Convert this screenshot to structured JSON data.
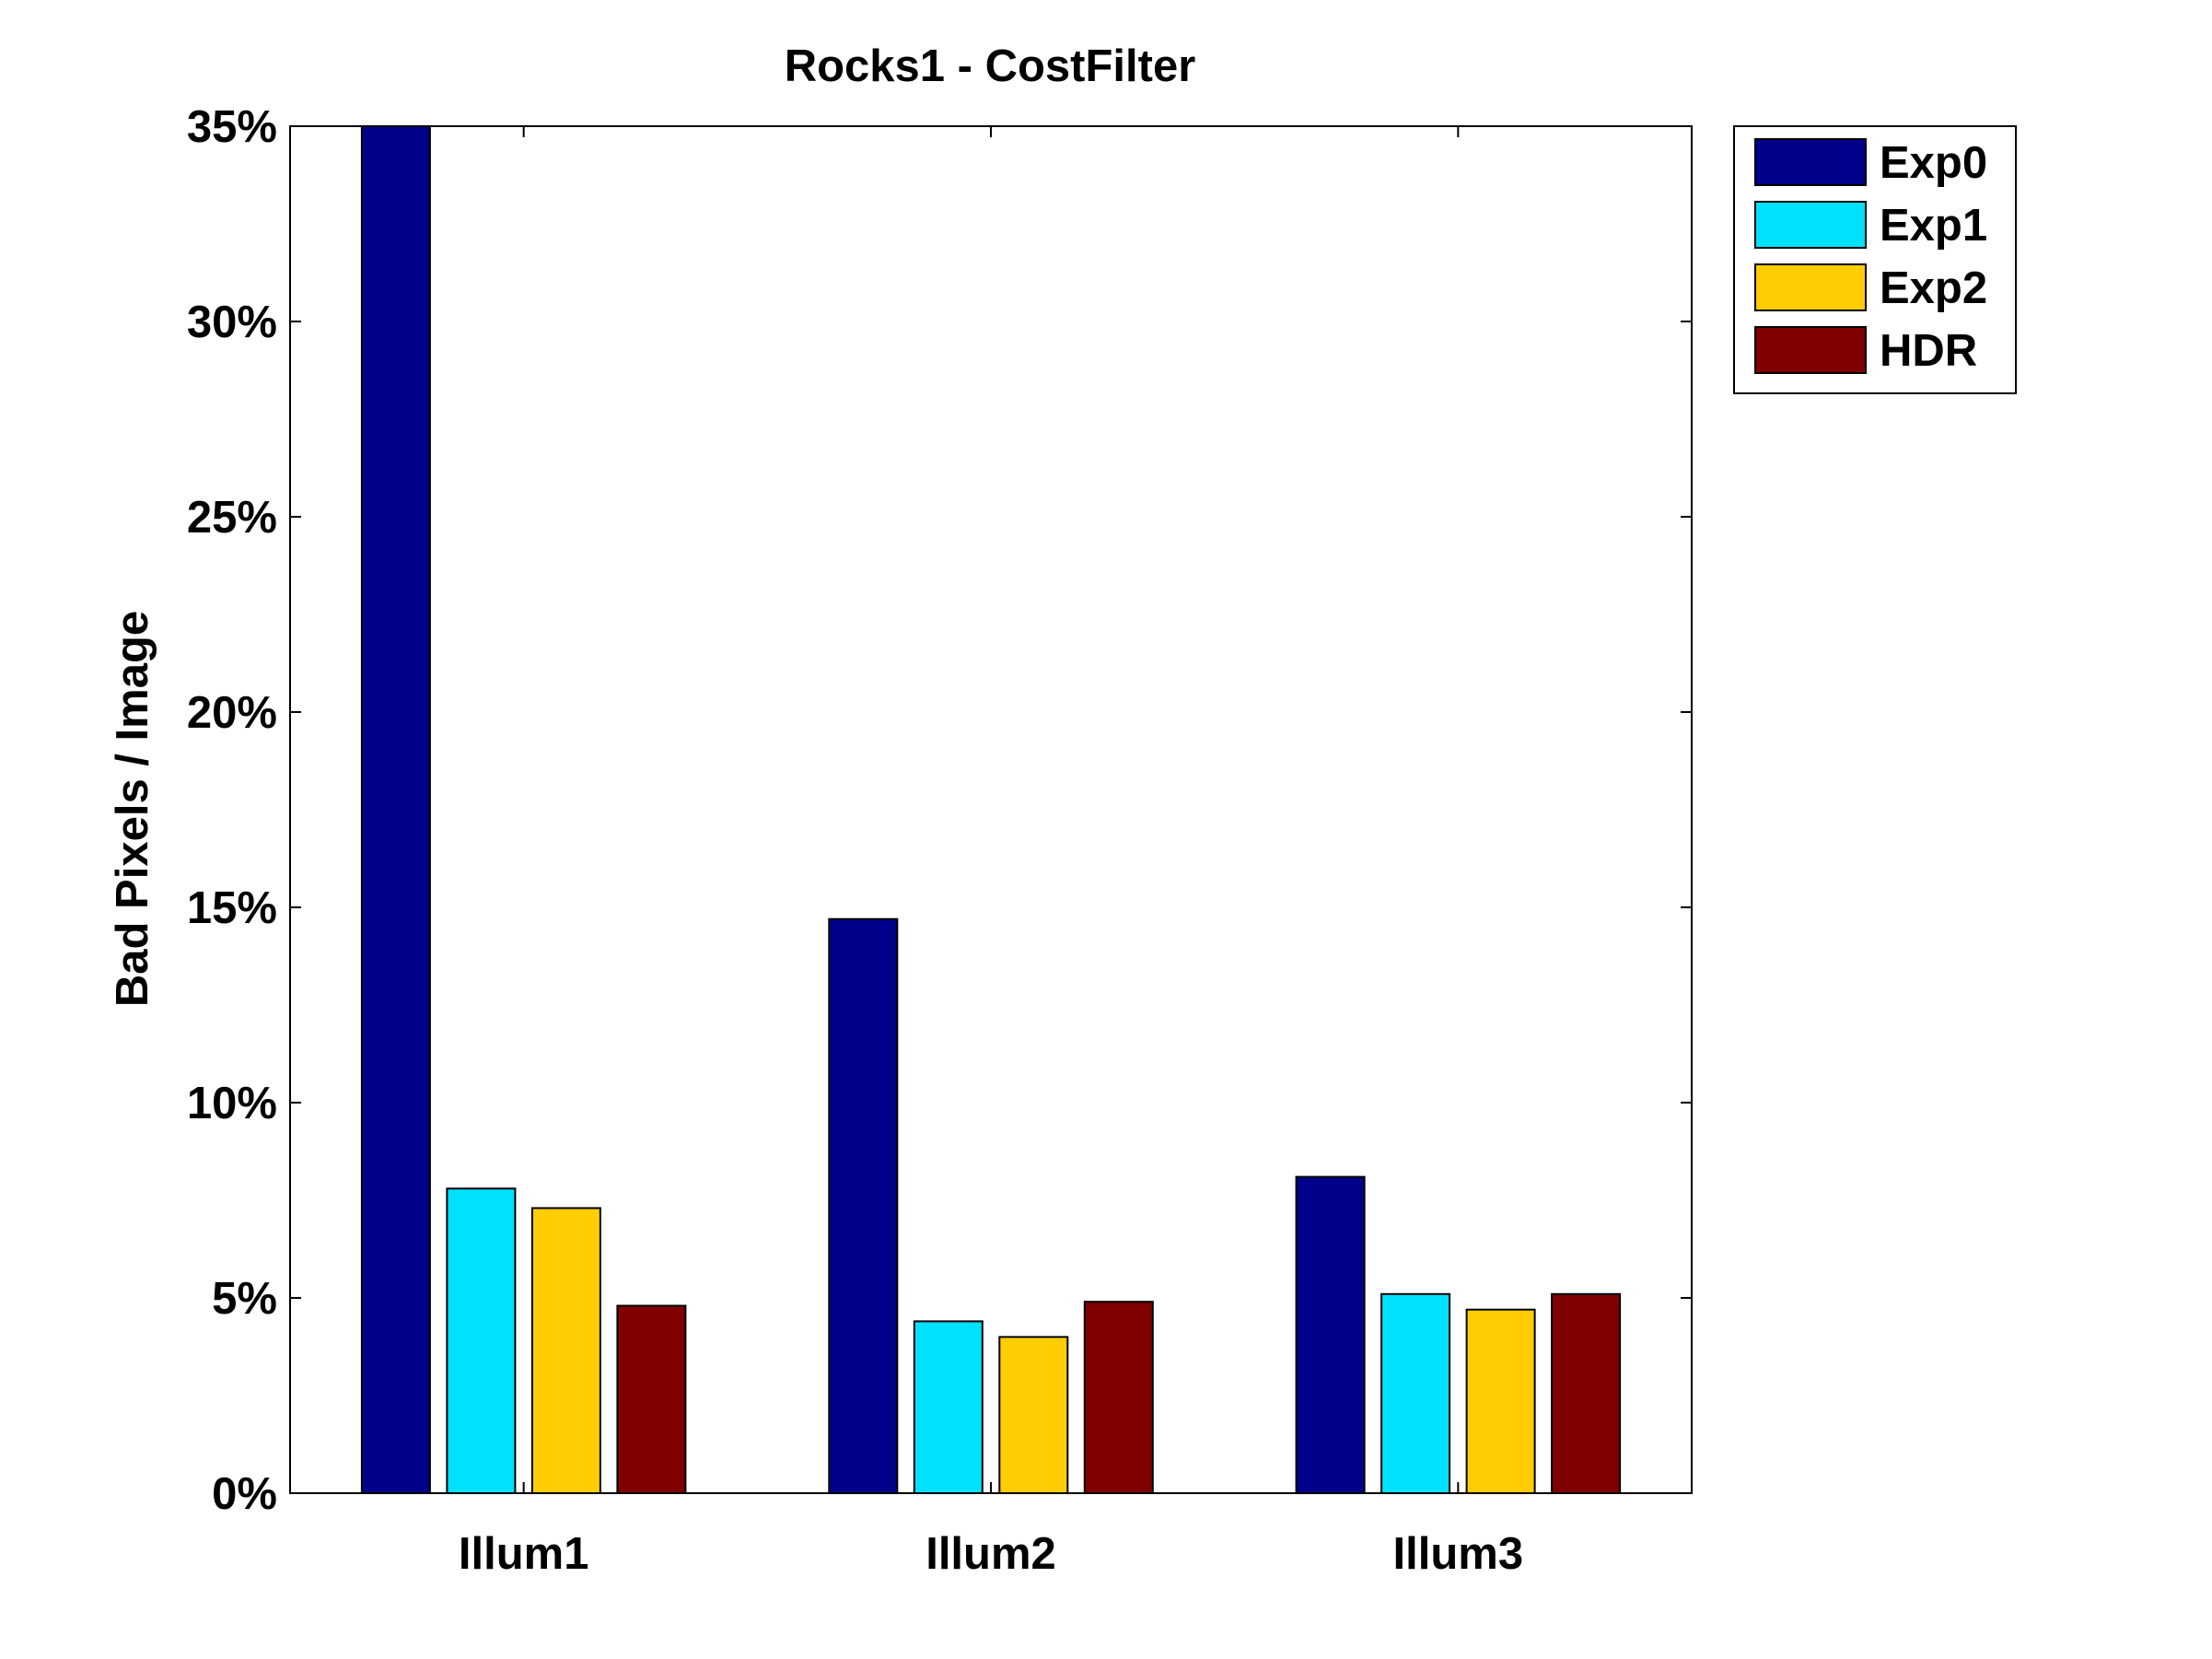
{
  "chart_data": {
    "type": "bar",
    "title": "Rocks1 - CostFilter",
    "xlabel": "",
    "ylabel": "Bad Pixels / Image",
    "categories": [
      "Illum1",
      "Illum2",
      "Illum3"
    ],
    "series": [
      {
        "name": "Exp0",
        "color": "#00008B",
        "values": [
          35.0,
          14.7,
          8.1
        ]
      },
      {
        "name": "Exp1",
        "color": "#00E1FF",
        "values": [
          7.8,
          4.4,
          5.1
        ]
      },
      {
        "name": "Exp2",
        "color": "#FFCD00",
        "values": [
          7.3,
          4.0,
          4.7
        ]
      },
      {
        "name": "HDR",
        "color": "#800000",
        "values": [
          4.8,
          4.9,
          5.1
        ]
      }
    ],
    "ylim": [
      0,
      35
    ],
    "yticks": [
      0,
      5,
      10,
      15,
      20,
      25,
      30,
      35
    ],
    "ytick_labels": [
      "0%",
      "5%",
      "10%",
      "15%",
      "20%",
      "25%",
      "30%",
      "35%"
    ],
    "grid": false,
    "legend_position": "outside-top-right"
  }
}
